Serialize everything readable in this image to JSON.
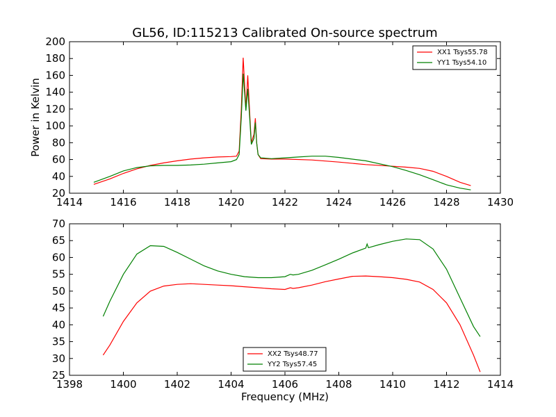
{
  "chart_data": [
    {
      "type": "line",
      "title": "GL56, ID:115213 Calibrated On-source spectrum",
      "xlabel": "",
      "ylabel": "Power in Kelvin",
      "xlim": [
        1414,
        1430
      ],
      "ylim": [
        20,
        200
      ],
      "xticks": [
        1414,
        1416,
        1418,
        1420,
        1422,
        1424,
        1426,
        1428,
        1430
      ],
      "yticks": [
        20,
        40,
        60,
        80,
        100,
        120,
        140,
        160,
        180,
        200
      ],
      "grid": false,
      "legend_position": "top-right",
      "series": [
        {
          "name": "XX1 Tsys55.78",
          "color": "#ff0000",
          "points": [
            [
              1414.9,
              30.5
            ],
            [
              1415.5,
              37
            ],
            [
              1416,
              43.5
            ],
            [
              1416.5,
              49
            ],
            [
              1417,
              53
            ],
            [
              1417.5,
              56
            ],
            [
              1418,
              58.5
            ],
            [
              1418.5,
              60.5
            ],
            [
              1419,
              62
            ],
            [
              1419.5,
              63
            ],
            [
              1420,
              63.5
            ],
            [
              1420.2,
              64
            ],
            [
              1420.3,
              70
            ],
            [
              1420.38,
              120
            ],
            [
              1420.45,
              181
            ],
            [
              1420.5,
              150
            ],
            [
              1420.55,
              120
            ],
            [
              1420.62,
              160
            ],
            [
              1420.7,
              110
            ],
            [
              1420.75,
              80
            ],
            [
              1420.85,
              90
            ],
            [
              1420.9,
              109
            ],
            [
              1420.95,
              80
            ],
            [
              1421,
              66
            ],
            [
              1421.1,
              61
            ],
            [
              1421.5,
              60.5
            ],
            [
              1422,
              60.5
            ],
            [
              1423,
              59.5
            ],
            [
              1424,
              57
            ],
            [
              1425,
              54
            ],
            [
              1426,
              52
            ],
            [
              1426.5,
              51
            ],
            [
              1427,
              49.5
            ],
            [
              1427.5,
              46
            ],
            [
              1428,
              40
            ],
            [
              1428.5,
              33
            ],
            [
              1428.9,
              29
            ]
          ]
        },
        {
          "name": "YY1 Tsys54.10",
          "color": "#008000",
          "points": [
            [
              1414.9,
              33
            ],
            [
              1415.5,
              40
            ],
            [
              1416,
              46.5
            ],
            [
              1416.5,
              50.5
            ],
            [
              1417,
              52.5
            ],
            [
              1417.5,
              53
            ],
            [
              1418,
              53
            ],
            [
              1418.5,
              53.5
            ],
            [
              1419,
              54.5
            ],
            [
              1419.5,
              56
            ],
            [
              1420,
              57.5
            ],
            [
              1420.2,
              60
            ],
            [
              1420.3,
              66
            ],
            [
              1420.38,
              110
            ],
            [
              1420.45,
              162
            ],
            [
              1420.5,
              140
            ],
            [
              1420.55,
              118
            ],
            [
              1420.62,
              144
            ],
            [
              1420.7,
              105
            ],
            [
              1420.75,
              78
            ],
            [
              1420.85,
              85
            ],
            [
              1420.9,
              104
            ],
            [
              1420.95,
              80
            ],
            [
              1421,
              66
            ],
            [
              1421.1,
              62
            ],
            [
              1421.5,
              61
            ],
            [
              1422,
              62
            ],
            [
              1422.5,
              63
            ],
            [
              1423,
              64
            ],
            [
              1423.5,
              64
            ],
            [
              1424,
              62.5
            ],
            [
              1425,
              58.5
            ],
            [
              1426,
              51.5
            ],
            [
              1426.5,
              47
            ],
            [
              1427,
              42
            ],
            [
              1427.5,
              36
            ],
            [
              1428,
              30
            ],
            [
              1428.5,
              26
            ],
            [
              1428.9,
              24
            ]
          ]
        }
      ]
    },
    {
      "type": "line",
      "title": "",
      "xlabel": "Frequency (MHz)",
      "ylabel": "",
      "xlim": [
        1398,
        1414
      ],
      "ylim": [
        25,
        70
      ],
      "xticks": [
        1398,
        1400,
        1402,
        1404,
        1406,
        1408,
        1410,
        1412,
        1414
      ],
      "yticks": [
        25,
        30,
        35,
        40,
        45,
        50,
        55,
        60,
        65,
        70
      ],
      "grid": false,
      "legend_position": "bottom-center",
      "series": [
        {
          "name": "XX2 Tsys48.77",
          "color": "#ff0000",
          "points": [
            [
              1399.25,
              31
            ],
            [
              1399.5,
              34
            ],
            [
              1400,
              41
            ],
            [
              1400.5,
              46.5
            ],
            [
              1401,
              50
            ],
            [
              1401.5,
              51.5
            ],
            [
              1402,
              52
            ],
            [
              1402.5,
              52.2
            ],
            [
              1403,
              52
            ],
            [
              1403.5,
              51.8
            ],
            [
              1404,
              51.6
            ],
            [
              1404.5,
              51.3
            ],
            [
              1405,
              51
            ],
            [
              1405.5,
              50.7
            ],
            [
              1406,
              50.5
            ],
            [
              1406.2,
              51
            ],
            [
              1406.3,
              50.8
            ],
            [
              1406.5,
              51
            ],
            [
              1407,
              51.8
            ],
            [
              1407.5,
              52.8
            ],
            [
              1408,
              53.6
            ],
            [
              1408.5,
              54.4
            ],
            [
              1409,
              54.5
            ],
            [
              1409.5,
              54.3
            ],
            [
              1410,
              54
            ],
            [
              1410.5,
              53.5
            ],
            [
              1411,
              52.7
            ],
            [
              1411.5,
              50.5
            ],
            [
              1412,
              46.5
            ],
            [
              1412.5,
              40
            ],
            [
              1413,
              31
            ],
            [
              1413.25,
              26
            ]
          ]
        },
        {
          "name": "YY2 Tsys57.45",
          "color": "#008000",
          "points": [
            [
              1399.25,
              42.5
            ],
            [
              1399.5,
              47
            ],
            [
              1400,
              55
            ],
            [
              1400.5,
              61
            ],
            [
              1401,
              63.5
            ],
            [
              1401.5,
              63.3
            ],
            [
              1402,
              61.5
            ],
            [
              1402.5,
              59.5
            ],
            [
              1403,
              57.5
            ],
            [
              1403.5,
              56
            ],
            [
              1404,
              55
            ],
            [
              1404.5,
              54.3
            ],
            [
              1405,
              54
            ],
            [
              1405.5,
              54
            ],
            [
              1406,
              54.3
            ],
            [
              1406.2,
              55
            ],
            [
              1406.3,
              54.8
            ],
            [
              1406.5,
              55
            ],
            [
              1407,
              56.2
            ],
            [
              1407.5,
              57.8
            ],
            [
              1408,
              59.5
            ],
            [
              1408.5,
              61.3
            ],
            [
              1409,
              62.8
            ],
            [
              1409.05,
              64
            ],
            [
              1409.1,
              62.9
            ],
            [
              1409.5,
              63.8
            ],
            [
              1410,
              64.8
            ],
            [
              1410.5,
              65.5
            ],
            [
              1411,
              65.3
            ],
            [
              1411.5,
              62.5
            ],
            [
              1412,
              56.5
            ],
            [
              1412.5,
              48
            ],
            [
              1413,
              39.5
            ],
            [
              1413.25,
              36.5
            ]
          ]
        }
      ]
    }
  ]
}
